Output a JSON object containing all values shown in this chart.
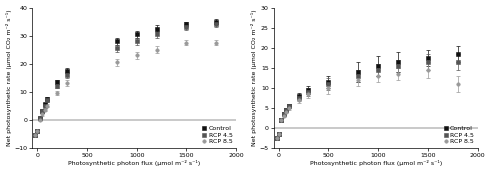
{
  "left": {
    "ylabel": "Net photosynthetic rate (μmol CO₂ m⁻² s⁻¹)",
    "xlabel": "Photosynthetic photon flux (μmol m⁻² s⁻¹)",
    "ylim": [
      -10,
      40
    ],
    "xlim": [
      -50,
      2000
    ],
    "yticks": [
      -10,
      0,
      10,
      20,
      30,
      40
    ],
    "xticks": [
      0,
      500,
      1000,
      1500,
      2000
    ],
    "series": {
      "Control": {
        "x": [
          -20,
          0,
          25,
          50,
          75,
          100,
          200,
          300,
          800,
          1000,
          1200,
          1500,
          1800
        ],
        "y": [
          -5.5,
          -4.0,
          0.5,
          3.0,
          5.5,
          7.5,
          13.5,
          17.5,
          28.0,
          30.5,
          32.5,
          34.0,
          35.0
        ],
        "yerr": [
          0.3,
          0.3,
          0.5,
          0.5,
          0.5,
          0.5,
          0.8,
          1.0,
          1.2,
          1.2,
          1.2,
          1.0,
          1.0
        ]
      },
      "RCP 4.5": {
        "x": [
          -20,
          0,
          25,
          50,
          75,
          100,
          200,
          300,
          800,
          1000,
          1200,
          1500,
          1800
        ],
        "y": [
          -5.5,
          -4.0,
          0.5,
          3.0,
          5.0,
          7.0,
          12.0,
          16.0,
          25.5,
          28.0,
          30.5,
          33.0,
          34.0
        ],
        "yerr": [
          0.3,
          0.3,
          0.5,
          0.5,
          0.5,
          0.5,
          0.8,
          1.0,
          1.2,
          1.2,
          1.2,
          1.0,
          1.0
        ]
      },
      "RCP 8.5": {
        "x": [
          -20,
          0,
          25,
          50,
          75,
          100,
          200,
          300,
          800,
          1000,
          1200,
          1500,
          1800
        ],
        "y": [
          -5.5,
          -4.0,
          0.0,
          2.0,
          3.5,
          5.0,
          9.5,
          13.0,
          20.5,
          23.0,
          25.0,
          27.5,
          27.5
        ],
        "yerr": [
          0.3,
          0.3,
          0.5,
          0.5,
          0.5,
          0.5,
          0.8,
          1.0,
          1.2,
          1.2,
          1.2,
          1.0,
          1.0
        ]
      }
    }
  },
  "right": {
    "ylabel": "Net photosynthetic rate (μmol CO₂ m⁻² s⁻¹)",
    "xlabel": "Photosynthetic photon flux (μmol m⁻² s⁻¹)",
    "ylim": [
      -5,
      30
    ],
    "xlim": [
      -50,
      2000
    ],
    "yticks": [
      -5,
      0,
      5,
      10,
      15,
      20,
      25,
      30
    ],
    "xticks": [
      0,
      500,
      1000,
      1500,
      2000
    ],
    "series": {
      "Control": {
        "x": [
          -20,
          0,
          25,
          50,
          75,
          100,
          200,
          300,
          500,
          800,
          1000,
          1200,
          1500,
          1800
        ],
        "y": [
          -2.5,
          -1.5,
          2.0,
          3.5,
          4.5,
          5.5,
          8.0,
          9.5,
          11.5,
          14.0,
          15.5,
          16.5,
          17.5,
          18.5
        ],
        "yerr": [
          0.3,
          0.3,
          0.4,
          0.4,
          0.4,
          0.5,
          0.8,
          1.0,
          1.5,
          2.5,
          2.5,
          2.5,
          2.0,
          2.0
        ]
      },
      "RCP 4.5": {
        "x": [
          -20,
          0,
          25,
          50,
          75,
          100,
          200,
          300,
          500,
          800,
          1000,
          1200,
          1500,
          1800
        ],
        "y": [
          -2.5,
          -1.5,
          2.0,
          3.5,
          4.5,
          5.5,
          7.5,
          9.0,
          11.0,
          13.0,
          14.5,
          15.5,
          16.5,
          16.5
        ],
        "yerr": [
          0.3,
          0.3,
          0.4,
          0.4,
          0.4,
          0.5,
          0.8,
          1.0,
          1.5,
          1.5,
          1.5,
          1.5,
          2.0,
          2.0
        ]
      },
      "RCP 8.5": {
        "x": [
          -20,
          0,
          25,
          50,
          75,
          100,
          200,
          300,
          500,
          800,
          1000,
          1200,
          1500,
          1800
        ],
        "y": [
          -2.5,
          -1.5,
          2.0,
          3.0,
          4.0,
          5.0,
          7.0,
          8.5,
          10.0,
          12.0,
          13.0,
          13.5,
          14.5,
          11.0
        ],
        "yerr": [
          0.3,
          0.3,
          0.4,
          0.4,
          0.4,
          0.5,
          0.8,
          1.0,
          1.5,
          1.5,
          1.5,
          1.5,
          2.0,
          2.0
        ]
      }
    }
  },
  "legend_labels": [
    "Control",
    "RCP 4.5",
    "RCP 8.5"
  ],
  "colors": {
    "Control": "#111111",
    "RCP 4.5": "#555555",
    "RCP 8.5": "#999999"
  },
  "markers": {
    "Control": "s",
    "RCP 4.5": "s",
    "RCP 8.5": "o"
  },
  "font_size": 4.5,
  "marker_size": 2.5,
  "line_width": 0.7
}
